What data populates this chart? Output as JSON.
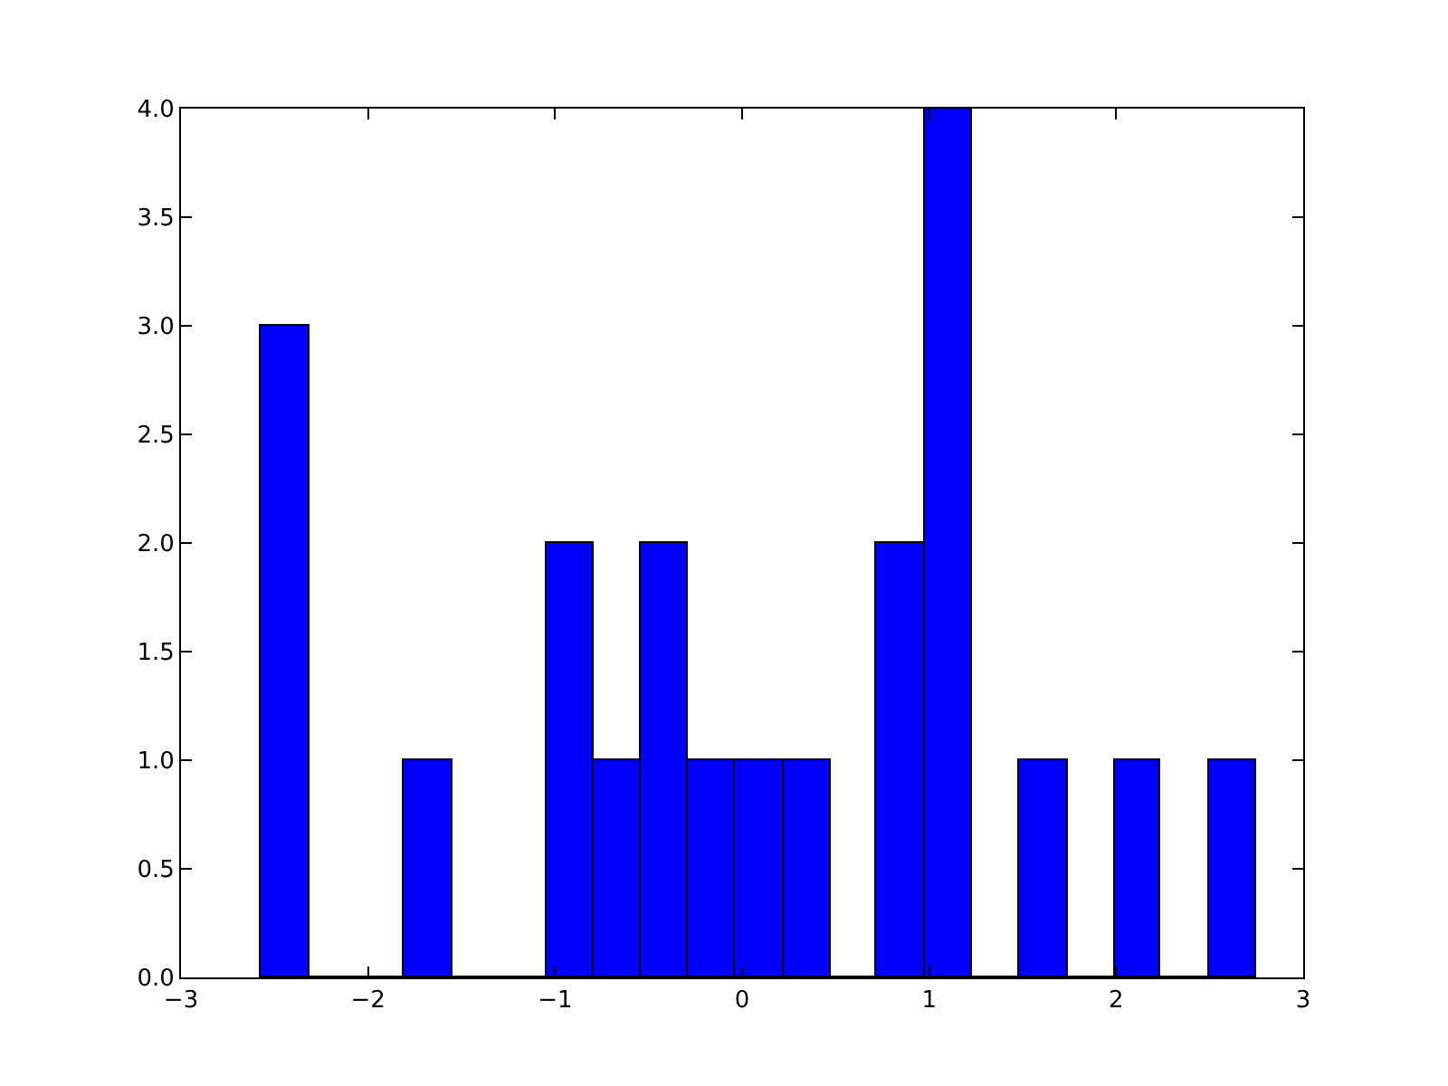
{
  "chart_data": {
    "type": "histogram",
    "bins": [
      -2.57,
      -2.31,
      -1.81,
      -1.55,
      -1.05,
      -0.79,
      -0.54,
      -0.29,
      -0.04,
      0.22,
      0.47,
      0.72,
      0.98,
      1.23,
      1.48,
      1.74,
      1.99,
      2.24,
      2.5,
      2.75
    ],
    "values": [
      3,
      0,
      1,
      0,
      2,
      1,
      2,
      1,
      1,
      1,
      0,
      2,
      4,
      0,
      1,
      0,
      1,
      0,
      1
    ],
    "color": "#0000ff",
    "xlim": [
      -3,
      3
    ],
    "xticks": [
      {
        "value": -3,
        "label": "−3"
      },
      {
        "value": -2,
        "label": "−2"
      },
      {
        "value": -1,
        "label": "−1"
      },
      0,
      1,
      2,
      3
    ],
    "ylim": [
      0,
      4
    ],
    "yticks": [
      {
        "value": 0,
        "label": "0.0"
      },
      {
        "value": 0.5,
        "label": "0.5"
      },
      {
        "value": 1,
        "label": "1.0"
      },
      {
        "value": 1.5,
        "label": "1.5"
      },
      {
        "value": 2,
        "label": "2.0"
      },
      {
        "value": 2.5,
        "label": "2.5"
      },
      {
        "value": 3,
        "label": "3.0"
      },
      {
        "value": 3.5,
        "label": "3.5"
      },
      {
        "value": 4,
        "label": "4.0"
      }
    ]
  }
}
